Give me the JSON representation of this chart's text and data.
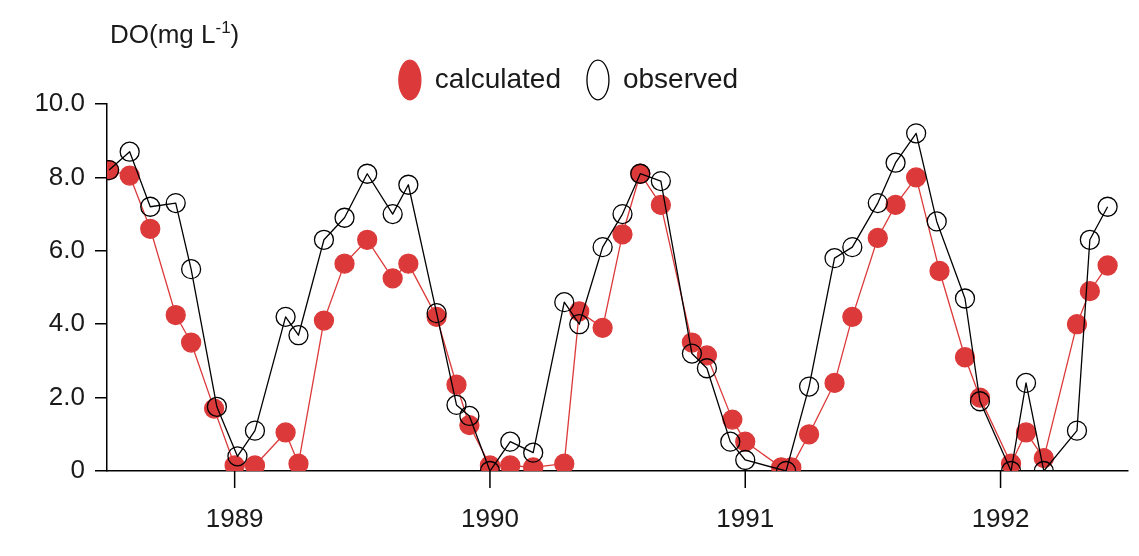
{
  "chart_data": {
    "type": "line",
    "ylabel": "DO(mg L$^{-1}$)",
    "xlim": [
      "1989-01",
      "1993-01"
    ],
    "ylim": [
      0,
      10
    ],
    "yticks": [
      0,
      {
        "value": 2,
        "label": "2.0"
      },
      {
        "value": 4,
        "label": "4.0"
      },
      {
        "value": 6,
        "label": "6.0"
      },
      {
        "value": 8,
        "label": "8.0"
      },
      {
        "value": 10,
        "label": "10.0"
      }
    ],
    "xticks": [
      {
        "value": "1989-07",
        "label": "1989"
      },
      {
        "value": "1990-07",
        "label": "1990"
      },
      {
        "value": "1991-07",
        "label": "1991"
      },
      {
        "value": "1992-07",
        "label": "1992"
      }
    ],
    "grid": false,
    "legend": "top",
    "marker": "circle",
    "line_style": "solid",
    "series": [
      {
        "name": "calculated",
        "color": "#dc3a3a",
        "x": [
          "1989-01-04",
          "1989-02-03",
          "1989-03-02",
          "1989-04-08",
          "1989-04-30",
          "1989-06-02",
          "1989-07-01",
          "1989-07-30",
          "1989-09-13",
          "1989-10-01",
          "1989-11-07",
          "1989-12-06",
          "1990-01-08",
          "1990-02-14",
          "1990-03-06",
          "1990-04-16",
          "1990-05-14",
          "1990-06-02",
          "1990-07-01",
          "1990-07-30",
          "1990-09-02",
          "1990-10-16",
          "1990-11-07",
          "1990-12-10",
          "1991-01-08",
          "1991-02-03",
          "1991-03-02",
          "1991-04-16",
          "1991-05-07",
          "1991-06-13",
          "1991-07-01",
          "1991-08-22",
          "1991-09-06",
          "1991-10-01",
          "1991-11-07",
          "1991-12-02",
          "1992-01-08",
          "1992-02-03",
          "1992-03-02",
          "1992-04-05",
          "1992-05-11",
          "1992-06-02",
          "1992-07-16",
          "1992-08-07",
          "1992-09-02",
          "1992-10-19",
          "1992-11-07",
          "1992-12-02"
        ],
        "values": [
          8.2,
          8.05,
          6.6,
          4.25,
          3.5,
          1.7,
          0.15,
          0.15,
          1.05,
          0.2,
          4.1,
          5.65,
          6.3,
          5.25,
          5.65,
          4.2,
          2.35,
          1.25,
          0.15,
          0.15,
          0.1,
          0.2,
          4.35,
          3.9,
          6.45,
          8.1,
          7.25,
          3.5,
          3.15,
          1.4,
          0.8,
          0.1,
          0.1,
          1.0,
          2.4,
          4.2,
          6.35,
          7.25,
          8.0,
          5.45,
          3.1,
          2.0,
          0.2,
          1.05,
          0.35,
          4.0,
          4.9,
          5.6
        ]
      },
      {
        "name": "observed",
        "color": "#000000",
        "x": [
          "1989-01-04",
          "1989-02-03",
          "1989-03-02",
          "1989-04-08",
          "1989-04-30",
          "1989-06-06",
          "1989-07-05",
          "1989-07-30",
          "1989-09-13",
          "1989-10-01",
          "1989-11-07",
          "1989-12-06",
          "1990-01-08",
          "1990-02-14",
          "1990-03-06",
          "1990-04-16",
          "1990-05-14",
          "1990-06-02",
          "1990-07-01",
          "1990-07-30",
          "1990-09-02",
          "1990-10-16",
          "1990-11-07",
          "1990-12-10",
          "1991-01-08",
          "1991-02-03",
          "1991-03-02",
          "1991-04-16",
          "1991-05-07",
          "1991-06-10",
          "1991-07-01",
          "1991-08-29",
          "1991-10-01",
          "1991-11-07",
          "1991-12-02",
          "1992-01-08",
          "1992-02-03",
          "1992-03-02",
          "1992-04-01",
          "1992-05-11",
          "1992-06-02",
          "1992-07-16",
          "1992-08-07",
          "1992-09-02",
          "1992-10-19",
          "1992-11-07",
          "1992-12-02"
        ],
        "values": [
          8.2,
          8.7,
          7.2,
          7.3,
          5.5,
          1.75,
          0.4,
          1.1,
          4.2,
          3.7,
          6.3,
          6.9,
          8.1,
          7.0,
          7.8,
          4.3,
          1.8,
          1.5,
          0,
          0.8,
          0.5,
          4.6,
          4.0,
          6.1,
          7.0,
          8.1,
          7.9,
          3.2,
          2.8,
          0.8,
          0.3,
          0,
          2.3,
          5.8,
          6.1,
          7.3,
          8.4,
          9.2,
          6.8,
          4.7,
          1.9,
          0,
          2.4,
          0,
          1.1,
          6.3,
          7.2
        ]
      }
    ]
  }
}
